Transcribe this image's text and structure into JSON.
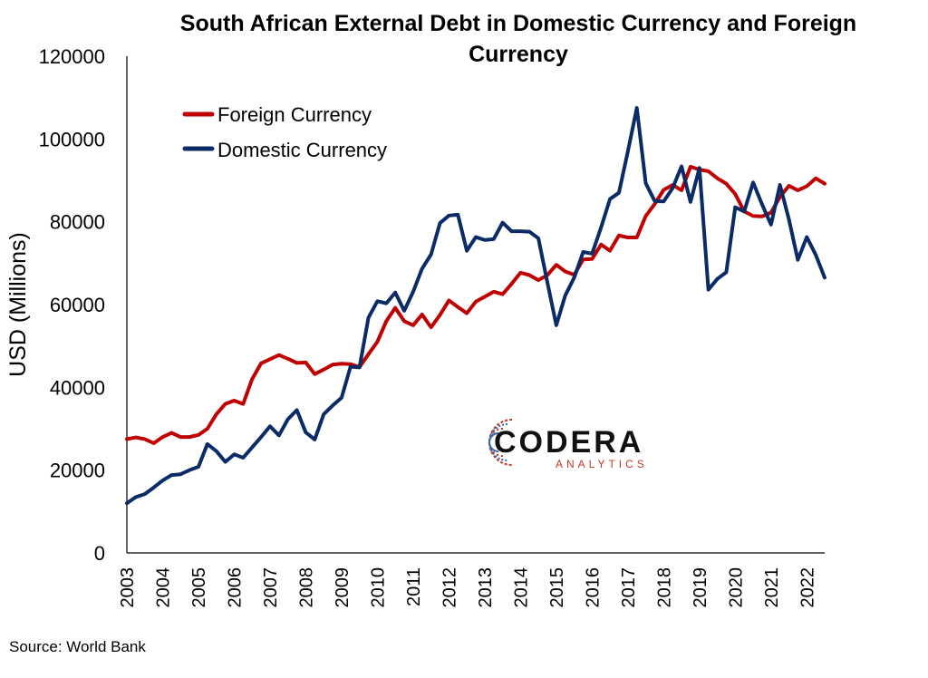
{
  "chart_data": {
    "type": "line",
    "title_lines": [
      "South African External Debt in Domestic Currency and Foreign",
      "Currency"
    ],
    "xlabel": "",
    "ylabel": "USD (Millions)",
    "ylim": [
      0,
      120000
    ],
    "yticks": [
      "0",
      "20000",
      "40000",
      "60000",
      "80000",
      "100000",
      "120000"
    ],
    "x_start_year": 2003,
    "quarters_per_year": 4,
    "xticks": [
      "2003",
      "2004",
      "2005",
      "2006",
      "2007",
      "2008",
      "2009",
      "2010",
      "2011",
      "2012",
      "2013",
      "2014",
      "2015",
      "2016",
      "2017",
      "2018",
      "2019",
      "2020",
      "2021",
      "2022"
    ],
    "legend_position": "top-left",
    "series": [
      {
        "name": "Foreign Currency",
        "color": "#c00000",
        "values": [
          27500,
          27900,
          27500,
          26500,
          28000,
          29000,
          28000,
          28000,
          28500,
          30000,
          33500,
          36000,
          36800,
          36000,
          42000,
          45800,
          46800,
          47800,
          46900,
          45900,
          46000,
          43200,
          44300,
          45500,
          45700,
          45600,
          44900,
          48000,
          51000,
          56000,
          59200,
          56000,
          55000,
          57600,
          54500,
          57500,
          61000,
          59400,
          57900,
          60700,
          61900,
          63100,
          62500,
          65000,
          67700,
          67100,
          65900,
          67100,
          69600,
          68000,
          67200,
          70900,
          71000,
          74500,
          73000,
          76700,
          76200,
          76200,
          81400,
          84300,
          87700,
          88900,
          87600,
          93300,
          92600,
          92200,
          90500,
          89200,
          86700,
          82500,
          81400,
          81300,
          82200,
          86000,
          88700,
          87600,
          88600,
          90500,
          89200
        ],
        "labels": []
      },
      {
        "name": "Domestic Currency",
        "color": "#0b2b66",
        "values": [
          12000,
          13500,
          14200,
          15800,
          17500,
          18800,
          19000,
          20000,
          20800,
          26300,
          24600,
          22000,
          23800,
          23000,
          25500,
          28000,
          30600,
          28400,
          32300,
          34500,
          29100,
          27400,
          33500,
          35600,
          37500,
          45000,
          44800,
          56800,
          60800,
          60300,
          62900,
          58500,
          63100,
          68700,
          72100,
          79700,
          81500,
          81700,
          73000,
          76300,
          75600,
          75800,
          79800,
          77700,
          77700,
          77600,
          76000,
          65400,
          55000,
          62200,
          66500,
          72700,
          72300,
          78600,
          85500,
          87000,
          97000,
          107500,
          89300,
          85000,
          84900,
          88100,
          93400,
          84800,
          93000,
          63600,
          66200,
          67800,
          83500,
          82500,
          89500,
          84200,
          79300,
          88900,
          80600,
          70800,
          76300,
          72000,
          66500
        ],
        "labels": []
      }
    ]
  },
  "source": "Source: World Bank",
  "logo": {
    "name": "CODERA",
    "subtitle": "ANALYTICS"
  }
}
